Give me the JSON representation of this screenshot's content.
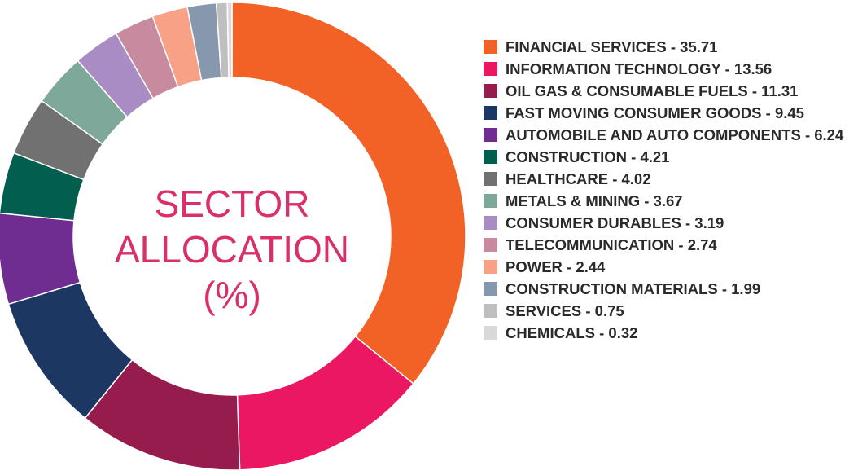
{
  "chart_data": {
    "type": "pie",
    "title_lines": [
      "SECTOR",
      "ALLOCATION",
      "(%)"
    ],
    "slices": [
      {
        "label": "FINANCIAL SERVICES",
        "value": 35.71,
        "color": "#f26125"
      },
      {
        "label": "INFORMATION TECHNOLOGY",
        "value": 13.56,
        "color": "#ec1762"
      },
      {
        "label": "OIL GAS & CONSUMABLE FUELS",
        "value": 11.31,
        "color": "#961c4d"
      },
      {
        "label": "FAST MOVING CONSUMER GOODS",
        "value": 9.45,
        "color": "#1c3762"
      },
      {
        "label": "AUTOMOBILE AND AUTO COMPONENTS",
        "value": 6.24,
        "color": "#6f2c91"
      },
      {
        "label": "CONSTRUCTION",
        "value": 4.21,
        "color": "#025e4e"
      },
      {
        "label": "HEALTHCARE",
        "value": 4.02,
        "color": "#717171"
      },
      {
        "label": "METALS & MINING",
        "value": 3.67,
        "color": "#7ea89a"
      },
      {
        "label": "CONSUMER DURABLES",
        "value": 3.19,
        "color": "#a98cc4"
      },
      {
        "label": "TELECOMMUNICATION",
        "value": 2.74,
        "color": "#c88a9e"
      },
      {
        "label": "POWER",
        "value": 2.44,
        "color": "#f9a186"
      },
      {
        "label": "CONSTRUCTION MATERIALS",
        "value": 1.99,
        "color": "#8697ae"
      },
      {
        "label": "SERVICES",
        "value": 0.75,
        "color": "#bfbfbf"
      },
      {
        "label": "CHEMICALS",
        "value": 0.32,
        "color": "#d9d9d9"
      }
    ],
    "legend": {
      "placement": "right",
      "entries": [
        "FINANCIAL SERVICES - 35.71",
        "INFORMATION TECHNOLOGY - 13.56",
        "OIL GAS & CONSUMABLE FUELS - 11.31",
        "FAST MOVING CONSUMER GOODS - 9.45",
        "AUTOMOBILE AND AUTO COMPONENTS - 6.24",
        "CONSTRUCTION - 4.21",
        "HEALTHCARE - 4.02",
        "METALS & MINING - 3.67",
        "CONSUMER DURABLES - 3.19",
        "TELECOMMUNICATION - 2.74",
        "POWER - 2.44",
        "CONSTRUCTION MATERIALS - 1.99",
        "SERVICES - 0.75",
        "CHEMICALS - 0.32"
      ]
    }
  }
}
